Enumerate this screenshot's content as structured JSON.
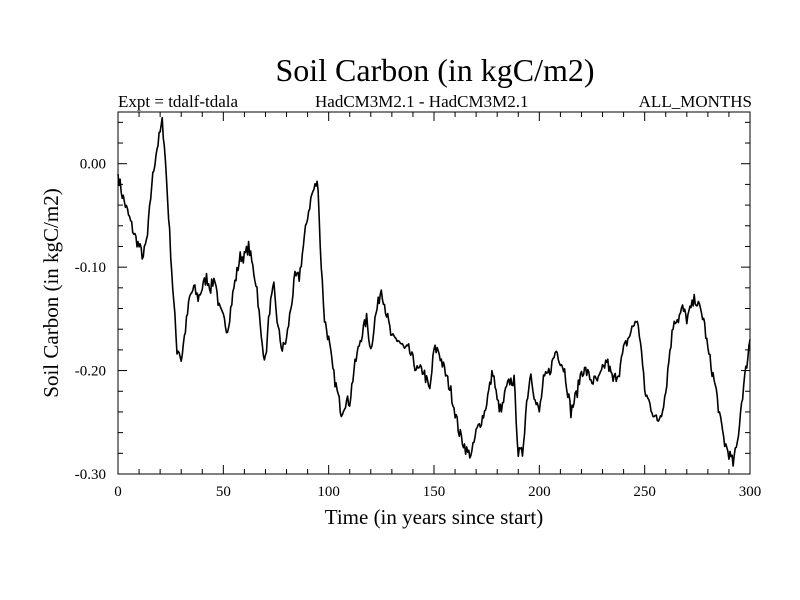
{
  "chart_data": {
    "type": "line",
    "title": "Soil Carbon (in kgC/m2)",
    "subtitle_left": "Expt = tdalf-tdala",
    "subtitle_center": "HadCM3M2.1 - HadCM3M2.1",
    "subtitle_right": "ALL_MONTHS",
    "xlabel": "Time (in years since start)",
    "ylabel": "Soil Carbon (in kgC/m2)",
    "xlim": [
      0,
      300
    ],
    "ylim": [
      -0.3,
      0.05
    ],
    "xticks": [
      0,
      50,
      100,
      150,
      200,
      250,
      300
    ],
    "xtick_labels": [
      "0",
      "50",
      "100",
      "150",
      "200",
      "250",
      "300"
    ],
    "yticks": [
      0.0,
      -0.1,
      -0.2,
      -0.3
    ],
    "ytick_labels": [
      "0.00",
      "-0.10",
      "-0.20",
      "-0.30"
    ],
    "series": [
      {
        "name": "Soil Carbon",
        "color": "#000000",
        "x": [
          0,
          2,
          5,
          8,
          10,
          12,
          14,
          16,
          18,
          20,
          21,
          22,
          24,
          26,
          28,
          29,
          30,
          32,
          34,
          36,
          38,
          40,
          42,
          44,
          46,
          48,
          50,
          52,
          55,
          58,
          60,
          62,
          64,
          66,
          68,
          70,
          72,
          74,
          76,
          78,
          80,
          82,
          84,
          86,
          88,
          90,
          92,
          94,
          95,
          96,
          98,
          100,
          102,
          104,
          106,
          108,
          110,
          112,
          115,
          118,
          120,
          122,
          125,
          128,
          130,
          133,
          136,
          138,
          140,
          142,
          145,
          148,
          150,
          152,
          155,
          158,
          160,
          162,
          164,
          166,
          168,
          170,
          172,
          174,
          176,
          178,
          180,
          182,
          184,
          186,
          188,
          190,
          192,
          194,
          196,
          198,
          200,
          202,
          205,
          208,
          210,
          212,
          215,
          218,
          220,
          222,
          225,
          228,
          230,
          232,
          235,
          238,
          240,
          242,
          244,
          246,
          248,
          250,
          252,
          254,
          256,
          258,
          260,
          262,
          264,
          266,
          268,
          270,
          272,
          274,
          276,
          278,
          280,
          282,
          284,
          286,
          288,
          290,
          292,
          294,
          296,
          298,
          300
        ],
        "values": [
          -0.01,
          -0.03,
          -0.05,
          -0.07,
          -0.08,
          -0.09,
          -0.07,
          -0.02,
          0.01,
          0.03,
          0.04,
          0.02,
          -0.05,
          -0.12,
          -0.18,
          -0.18,
          -0.19,
          -0.16,
          -0.13,
          -0.12,
          -0.13,
          -0.12,
          -0.11,
          -0.12,
          -0.11,
          -0.14,
          -0.15,
          -0.16,
          -0.12,
          -0.09,
          -0.09,
          -0.08,
          -0.1,
          -0.12,
          -0.17,
          -0.19,
          -0.14,
          -0.12,
          -0.16,
          -0.18,
          -0.17,
          -0.14,
          -0.11,
          -0.11,
          -0.08,
          -0.05,
          -0.03,
          -0.02,
          -0.02,
          -0.08,
          -0.15,
          -0.17,
          -0.2,
          -0.22,
          -0.24,
          -0.23,
          -0.23,
          -0.2,
          -0.17,
          -0.15,
          -0.18,
          -0.15,
          -0.12,
          -0.15,
          -0.17,
          -0.17,
          -0.18,
          -0.18,
          -0.19,
          -0.2,
          -0.2,
          -0.22,
          -0.18,
          -0.18,
          -0.2,
          -0.22,
          -0.24,
          -0.26,
          -0.27,
          -0.28,
          -0.28,
          -0.26,
          -0.25,
          -0.24,
          -0.22,
          -0.2,
          -0.23,
          -0.24,
          -0.22,
          -0.21,
          -0.21,
          -0.28,
          -0.28,
          -0.23,
          -0.2,
          -0.23,
          -0.24,
          -0.21,
          -0.2,
          -0.18,
          -0.19,
          -0.2,
          -0.24,
          -0.22,
          -0.2,
          -0.2,
          -0.21,
          -0.21,
          -0.2,
          -0.19,
          -0.21,
          -0.2,
          -0.18,
          -0.17,
          -0.16,
          -0.15,
          -0.17,
          -0.22,
          -0.23,
          -0.24,
          -0.25,
          -0.24,
          -0.22,
          -0.18,
          -0.15,
          -0.15,
          -0.14,
          -0.15,
          -0.14,
          -0.13,
          -0.14,
          -0.15,
          -0.18,
          -0.2,
          -0.22,
          -0.25,
          -0.27,
          -0.28,
          -0.29,
          -0.27,
          -0.23,
          -0.2,
          -0.17
        ]
      }
    ]
  }
}
